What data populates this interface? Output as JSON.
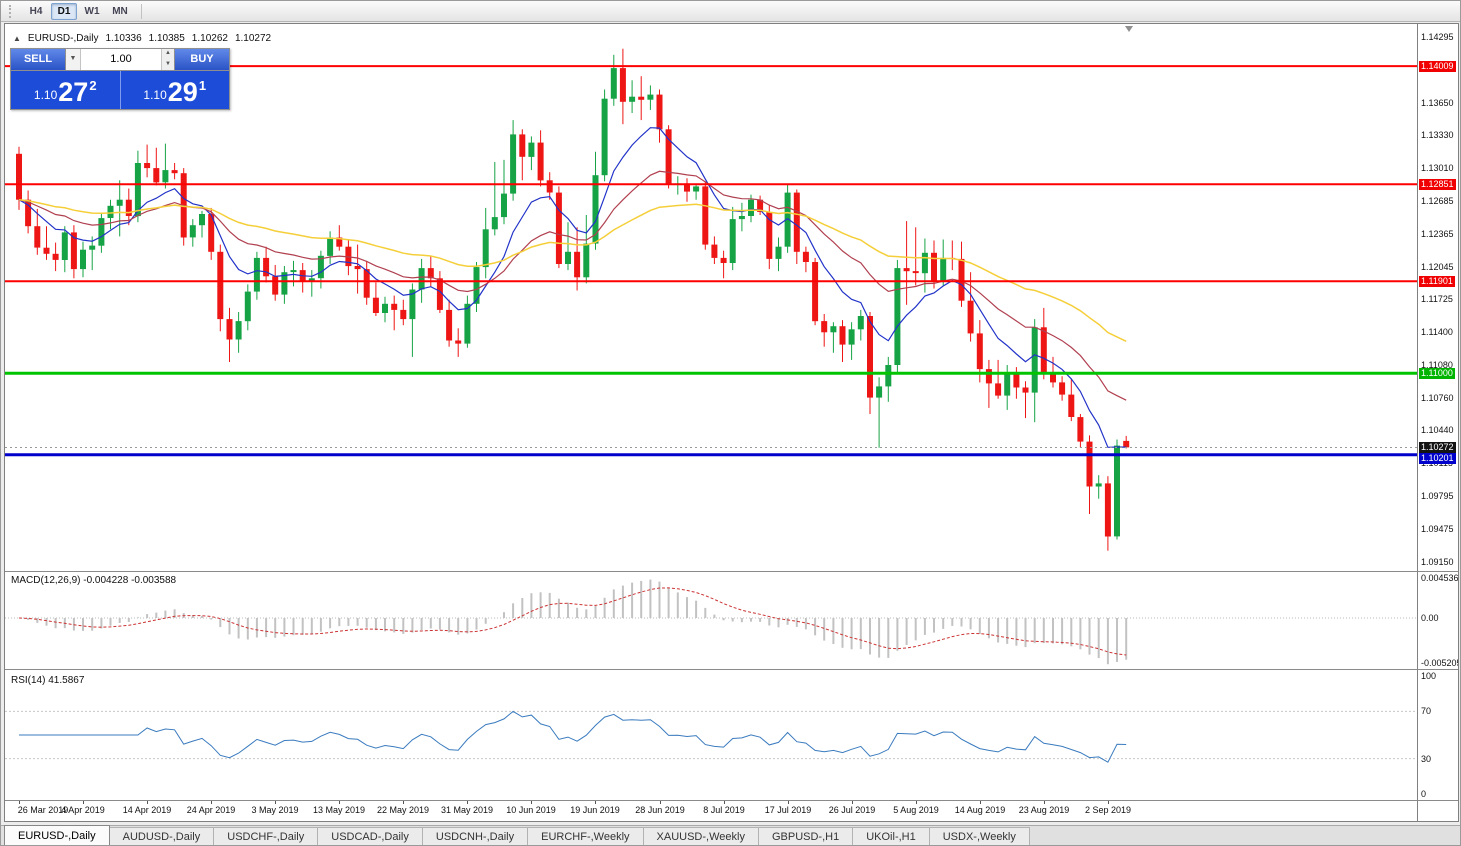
{
  "toolbar": {
    "periods": [
      {
        "label": "H4",
        "active": false
      },
      {
        "label": "D1",
        "active": true
      },
      {
        "label": "W1",
        "active": false
      },
      {
        "label": "MN",
        "active": false
      }
    ]
  },
  "chart_header": {
    "collapse_icon": "▲",
    "symbol": "EURUSD-,Daily",
    "open": "1.10336",
    "high": "1.10385",
    "low": "1.10262",
    "close": "1.10272"
  },
  "trade_panel": {
    "sell_label": "SELL",
    "buy_label": "BUY",
    "volume": "1.00",
    "dropdown_icon": "▼",
    "spinner_up_icon": "▲",
    "spinner_down_icon": "▼",
    "sell_price": {
      "base": "1.10",
      "big": "27",
      "sup": "2"
    },
    "buy_price": {
      "base": "1.10",
      "big": "29",
      "sup": "1"
    }
  },
  "price_scale": {
    "ticks": [
      "1.14295",
      "1.13650",
      "1.13330",
      "1.13010",
      "1.12685",
      "1.12365",
      "1.12045",
      "1.11725",
      "1.11400",
      "1.11080",
      "1.10760",
      "1.10440",
      "1.10115",
      "1.09795",
      "1.09475",
      "1.09150"
    ],
    "badges": [
      {
        "text": "1.14009",
        "price": 1.14009,
        "color": "#f00000"
      },
      {
        "text": "1.12851",
        "price": 1.12851,
        "color": "#f00000"
      },
      {
        "text": "1.11901",
        "price": 1.11901,
        "color": "#f00000"
      },
      {
        "text": "1.11000",
        "price": 1.11,
        "color": "#00b400"
      },
      {
        "text": "1.10272",
        "price": 1.10272,
        "color": "#141414"
      },
      {
        "text": "1.10201",
        "price": 1.10201,
        "color": "#0000cc"
      }
    ]
  },
  "macd_panel": {
    "label": "MACD(12,26,9) -0.004228 -0.003588",
    "scale_labels": [
      "0.004536",
      "0.00",
      "-0.005205"
    ]
  },
  "rsi_panel": {
    "label": "RSI(14) 41.5867",
    "scale_labels": [
      "100",
      "70",
      "30",
      "0"
    ]
  },
  "tabs": [
    {
      "label": "EURUSD-,Daily",
      "active": true
    },
    {
      "label": "AUDUSD-,Daily",
      "active": false
    },
    {
      "label": "USDCHF-,Daily",
      "active": false
    },
    {
      "label": "USDCAD-,Daily",
      "active": false
    },
    {
      "label": "USDCNH-,Daily",
      "active": false
    },
    {
      "label": "EURCHF-,Weekly",
      "active": false
    },
    {
      "label": "XAUUSD-,Weekly",
      "active": false
    },
    {
      "label": "GBPUSD-,H1",
      "active": false
    },
    {
      "label": "UKOil-,H1",
      "active": false
    },
    {
      "label": "USDX-,Weekly",
      "active": false
    }
  ],
  "chart_data": {
    "type": "candlestick",
    "symbol": "EURUSD",
    "timeframe": "Daily",
    "colors": {
      "up": "#16a345",
      "down": "#ee1515"
    },
    "y_range": {
      "min": 1.0905,
      "max": 1.14422
    },
    "current_price": 1.10272,
    "last_candle": {
      "open": 1.10336,
      "high": 1.10385,
      "low": 1.10262,
      "close": 1.10272
    },
    "hlines": [
      {
        "price": 1.14009,
        "color": "#ff0000",
        "width": 2
      },
      {
        "price": 1.12851,
        "color": "#ff0000",
        "width": 2
      },
      {
        "price": 1.11901,
        "color": "#ff0000",
        "width": 2
      },
      {
        "price": 1.11,
        "color": "#00c400",
        "width": 3
      },
      {
        "price": 1.10201,
        "color": "#0000cc",
        "width": 3
      }
    ],
    "moving_averages": [
      {
        "period": 9,
        "color": "#2233c8",
        "width": 1.2
      },
      {
        "period": 22,
        "color": "#b04050",
        "width": 1.2
      },
      {
        "period": 50,
        "color": "#f5cf3a",
        "width": 1.5
      }
    ],
    "macd": {
      "fast": 12,
      "slow": 26,
      "signal": 9,
      "main_value": -0.004228,
      "signal_value": -0.003588,
      "scale_max": 0.004536,
      "scale_min": -0.005205
    },
    "rsi": {
      "period": 14,
      "value": 41.5867,
      "levels": [
        70,
        30
      ],
      "range": [
        0,
        100
      ]
    },
    "x_label_step": 7,
    "x_labels": [
      "26 Mar 2019",
      "4 Apr 2019",
      "14 Apr 2019",
      "24 Apr 2019",
      "3 May 2019",
      "13 May 2019",
      "22 May 2019",
      "31 May 2019",
      "10 Jun 2019",
      "19 Jun 2019",
      "28 Jun 2019",
      "8 Jul 2019",
      "17 Jul 2019",
      "26 Jul 2019",
      "5 Aug 2019",
      "14 Aug 2019",
      "23 Aug 2019",
      "2 Sep 2019"
    ],
    "candles": [
      [
        1.1315,
        1.1322,
        1.126,
        1.127
      ],
      [
        1.127,
        1.1279,
        1.1237,
        1.1244
      ],
      [
        1.1244,
        1.1261,
        1.1216,
        1.1223
      ],
      [
        1.1223,
        1.1244,
        1.1211,
        1.1217
      ],
      [
        1.1217,
        1.1228,
        1.12,
        1.1211
      ],
      [
        1.1211,
        1.1244,
        1.1199,
        1.1238
      ],
      [
        1.1238,
        1.1245,
        1.1193,
        1.1202
      ],
      [
        1.1202,
        1.1229,
        1.1194,
        1.1221
      ],
      [
        1.1221,
        1.1234,
        1.1201,
        1.1225
      ],
      [
        1.1225,
        1.1256,
        1.1218,
        1.1252
      ],
      [
        1.1252,
        1.127,
        1.1241,
        1.1264
      ],
      [
        1.1264,
        1.1289,
        1.1234,
        1.127
      ],
      [
        1.127,
        1.1281,
        1.1245,
        1.1254
      ],
      [
        1.1254,
        1.1318,
        1.1248,
        1.1306
      ],
      [
        1.1306,
        1.1324,
        1.1292,
        1.1301
      ],
      [
        1.1301,
        1.1321,
        1.1284,
        1.1287
      ],
      [
        1.1287,
        1.1325,
        1.1281,
        1.1299
      ],
      [
        1.1299,
        1.1306,
        1.129,
        1.1296
      ],
      [
        1.1296,
        1.1301,
        1.1225,
        1.1233
      ],
      [
        1.1233,
        1.1251,
        1.1224,
        1.1245
      ],
      [
        1.1245,
        1.1259,
        1.1233,
        1.1256
      ],
      [
        1.1256,
        1.1262,
        1.1211,
        1.1219
      ],
      [
        1.1219,
        1.1226,
        1.1141,
        1.1153
      ],
      [
        1.1153,
        1.1164,
        1.1111,
        1.1133
      ],
      [
        1.1133,
        1.116,
        1.112,
        1.1151
      ],
      [
        1.1151,
        1.1187,
        1.1142,
        1.118
      ],
      [
        1.118,
        1.1219,
        1.1172,
        1.1213
      ],
      [
        1.1213,
        1.1224,
        1.1189,
        1.1195
      ],
      [
        1.1195,
        1.1206,
        1.1171,
        1.1177
      ],
      [
        1.1177,
        1.1205,
        1.1168,
        1.1199
      ],
      [
        1.1199,
        1.121,
        1.1185,
        1.1201
      ],
      [
        1.1201,
        1.1208,
        1.1179,
        1.119
      ],
      [
        1.119,
        1.1201,
        1.1175,
        1.1193
      ],
      [
        1.1193,
        1.122,
        1.1183,
        1.1215
      ],
      [
        1.1215,
        1.1239,
        1.1207,
        1.1233
      ],
      [
        1.1233,
        1.1245,
        1.122,
        1.1224
      ],
      [
        1.1224,
        1.123,
        1.1196,
        1.1205
      ],
      [
        1.1205,
        1.1226,
        1.1178,
        1.1202
      ],
      [
        1.1202,
        1.121,
        1.1167,
        1.1174
      ],
      [
        1.1174,
        1.1189,
        1.1156,
        1.1159
      ],
      [
        1.1159,
        1.1175,
        1.115,
        1.1168
      ],
      [
        1.1168,
        1.1176,
        1.1142,
        1.1162
      ],
      [
        1.1162,
        1.1172,
        1.1147,
        1.1153
      ],
      [
        1.1153,
        1.1188,
        1.1116,
        1.1182
      ],
      [
        1.1182,
        1.1212,
        1.1169,
        1.1203
      ],
      [
        1.1203,
        1.1215,
        1.1185,
        1.1193
      ],
      [
        1.1193,
        1.12,
        1.1159,
        1.1162
      ],
      [
        1.1162,
        1.1172,
        1.1126,
        1.1132
      ],
      [
        1.1132,
        1.1144,
        1.1116,
        1.1129
      ],
      [
        1.1129,
        1.1176,
        1.1125,
        1.1168
      ],
      [
        1.1168,
        1.1209,
        1.116,
        1.1204
      ],
      [
        1.1204,
        1.1262,
        1.1193,
        1.1241
      ],
      [
        1.1241,
        1.1307,
        1.1235,
        1.1253
      ],
      [
        1.1253,
        1.1309,
        1.1246,
        1.1276
      ],
      [
        1.1276,
        1.1348,
        1.1269,
        1.1334
      ],
      [
        1.1334,
        1.1339,
        1.1289,
        1.1312
      ],
      [
        1.1312,
        1.1332,
        1.1299,
        1.1326
      ],
      [
        1.1326,
        1.1338,
        1.1283,
        1.1289
      ],
      [
        1.1289,
        1.1297,
        1.127,
        1.1277
      ],
      [
        1.1277,
        1.1283,
        1.1203,
        1.1207
      ],
      [
        1.1207,
        1.1248,
        1.1201,
        1.1219
      ],
      [
        1.1219,
        1.1243,
        1.1181,
        1.1194
      ],
      [
        1.1194,
        1.1255,
        1.1188,
        1.1227
      ],
      [
        1.1227,
        1.1317,
        1.1221,
        1.1294
      ],
      [
        1.1294,
        1.1378,
        1.1288,
        1.1369
      ],
      [
        1.1369,
        1.1412,
        1.1362,
        1.1399
      ],
      [
        1.1399,
        1.1418,
        1.1344,
        1.1366
      ],
      [
        1.1366,
        1.1387,
        1.1355,
        1.1371
      ],
      [
        1.1371,
        1.1391,
        1.1348,
        1.1368
      ],
      [
        1.1368,
        1.1382,
        1.1358,
        1.1373
      ],
      [
        1.1373,
        1.1378,
        1.1326,
        1.1339
      ],
      [
        1.1339,
        1.1343,
        1.1281,
        1.1285
      ],
      [
        1.1285,
        1.1293,
        1.1275,
        1.1286
      ],
      [
        1.1286,
        1.1291,
        1.1268,
        1.1278
      ],
      [
        1.1278,
        1.1286,
        1.127,
        1.1283
      ],
      [
        1.1283,
        1.1288,
        1.1221,
        1.1226
      ],
      [
        1.1226,
        1.1234,
        1.1207,
        1.1213
      ],
      [
        1.1213,
        1.122,
        1.1193,
        1.1208
      ],
      [
        1.1208,
        1.1263,
        1.1201,
        1.1251
      ],
      [
        1.1251,
        1.1267,
        1.1239,
        1.1254
      ],
      [
        1.1254,
        1.1275,
        1.1248,
        1.127
      ],
      [
        1.127,
        1.1274,
        1.1255,
        1.1258
      ],
      [
        1.1258,
        1.1265,
        1.1202,
        1.1212
      ],
      [
        1.1212,
        1.1233,
        1.12,
        1.1224
      ],
      [
        1.1224,
        1.1285,
        1.1218,
        1.1277
      ],
      [
        1.1277,
        1.128,
        1.1207,
        1.1219
      ],
      [
        1.1219,
        1.1224,
        1.1199,
        1.1209
      ],
      [
        1.1209,
        1.1213,
        1.1147,
        1.1151
      ],
      [
        1.1151,
        1.1158,
        1.1126,
        1.114
      ],
      [
        1.114,
        1.115,
        1.112,
        1.1146
      ],
      [
        1.1146,
        1.1152,
        1.1111,
        1.1128
      ],
      [
        1.1128,
        1.115,
        1.1113,
        1.1143
      ],
      [
        1.1143,
        1.1162,
        1.1132,
        1.1156
      ],
      [
        1.1156,
        1.116,
        1.106,
        1.1076
      ],
      [
        1.1076,
        1.1096,
        1.1027,
        1.1087
      ],
      [
        1.1087,
        1.1116,
        1.1072,
        1.1108
      ],
      [
        1.1108,
        1.1211,
        1.1101,
        1.1203
      ],
      [
        1.1203,
        1.1249,
        1.1167,
        1.12
      ],
      [
        1.12,
        1.1243,
        1.1186,
        1.1198
      ],
      [
        1.1198,
        1.1232,
        1.1179,
        1.1218
      ],
      [
        1.1218,
        1.123,
        1.1183,
        1.119
      ],
      [
        1.119,
        1.1231,
        1.1186,
        1.1213
      ],
      [
        1.1213,
        1.123,
        1.1201,
        1.1212
      ],
      [
        1.1212,
        1.1229,
        1.1165,
        1.1171
      ],
      [
        1.1171,
        1.1199,
        1.1131,
        1.1139
      ],
      [
        1.1139,
        1.1152,
        1.1091,
        1.1104
      ],
      [
        1.1104,
        1.1113,
        1.1066,
        1.109
      ],
      [
        1.109,
        1.1113,
        1.1075,
        1.1078
      ],
      [
        1.1078,
        1.1108,
        1.1064,
        1.1099
      ],
      [
        1.1099,
        1.1106,
        1.1075,
        1.1086
      ],
      [
        1.1086,
        1.1092,
        1.1056,
        1.1081
      ],
      [
        1.1081,
        1.1153,
        1.1052,
        1.1145
      ],
      [
        1.1145,
        1.1164,
        1.1094,
        1.1101
      ],
      [
        1.1101,
        1.1116,
        1.1086,
        1.1091
      ],
      [
        1.1091,
        1.1097,
        1.1073,
        1.1079
      ],
      [
        1.1079,
        1.1094,
        1.1053,
        1.1057
      ],
      [
        1.1057,
        1.106,
        1.1027,
        1.1033
      ],
      [
        1.1033,
        1.1039,
        1.0962,
        1.0989
      ],
      [
        1.0989,
        1.1,
        1.0977,
        1.0992
      ],
      [
        1.0992,
        1.0999,
        1.0926,
        1.094
      ],
      [
        1.094,
        1.1035,
        1.0937,
        1.1029
      ],
      [
        1.10336,
        1.10385,
        1.10262,
        1.10272
      ]
    ]
  }
}
